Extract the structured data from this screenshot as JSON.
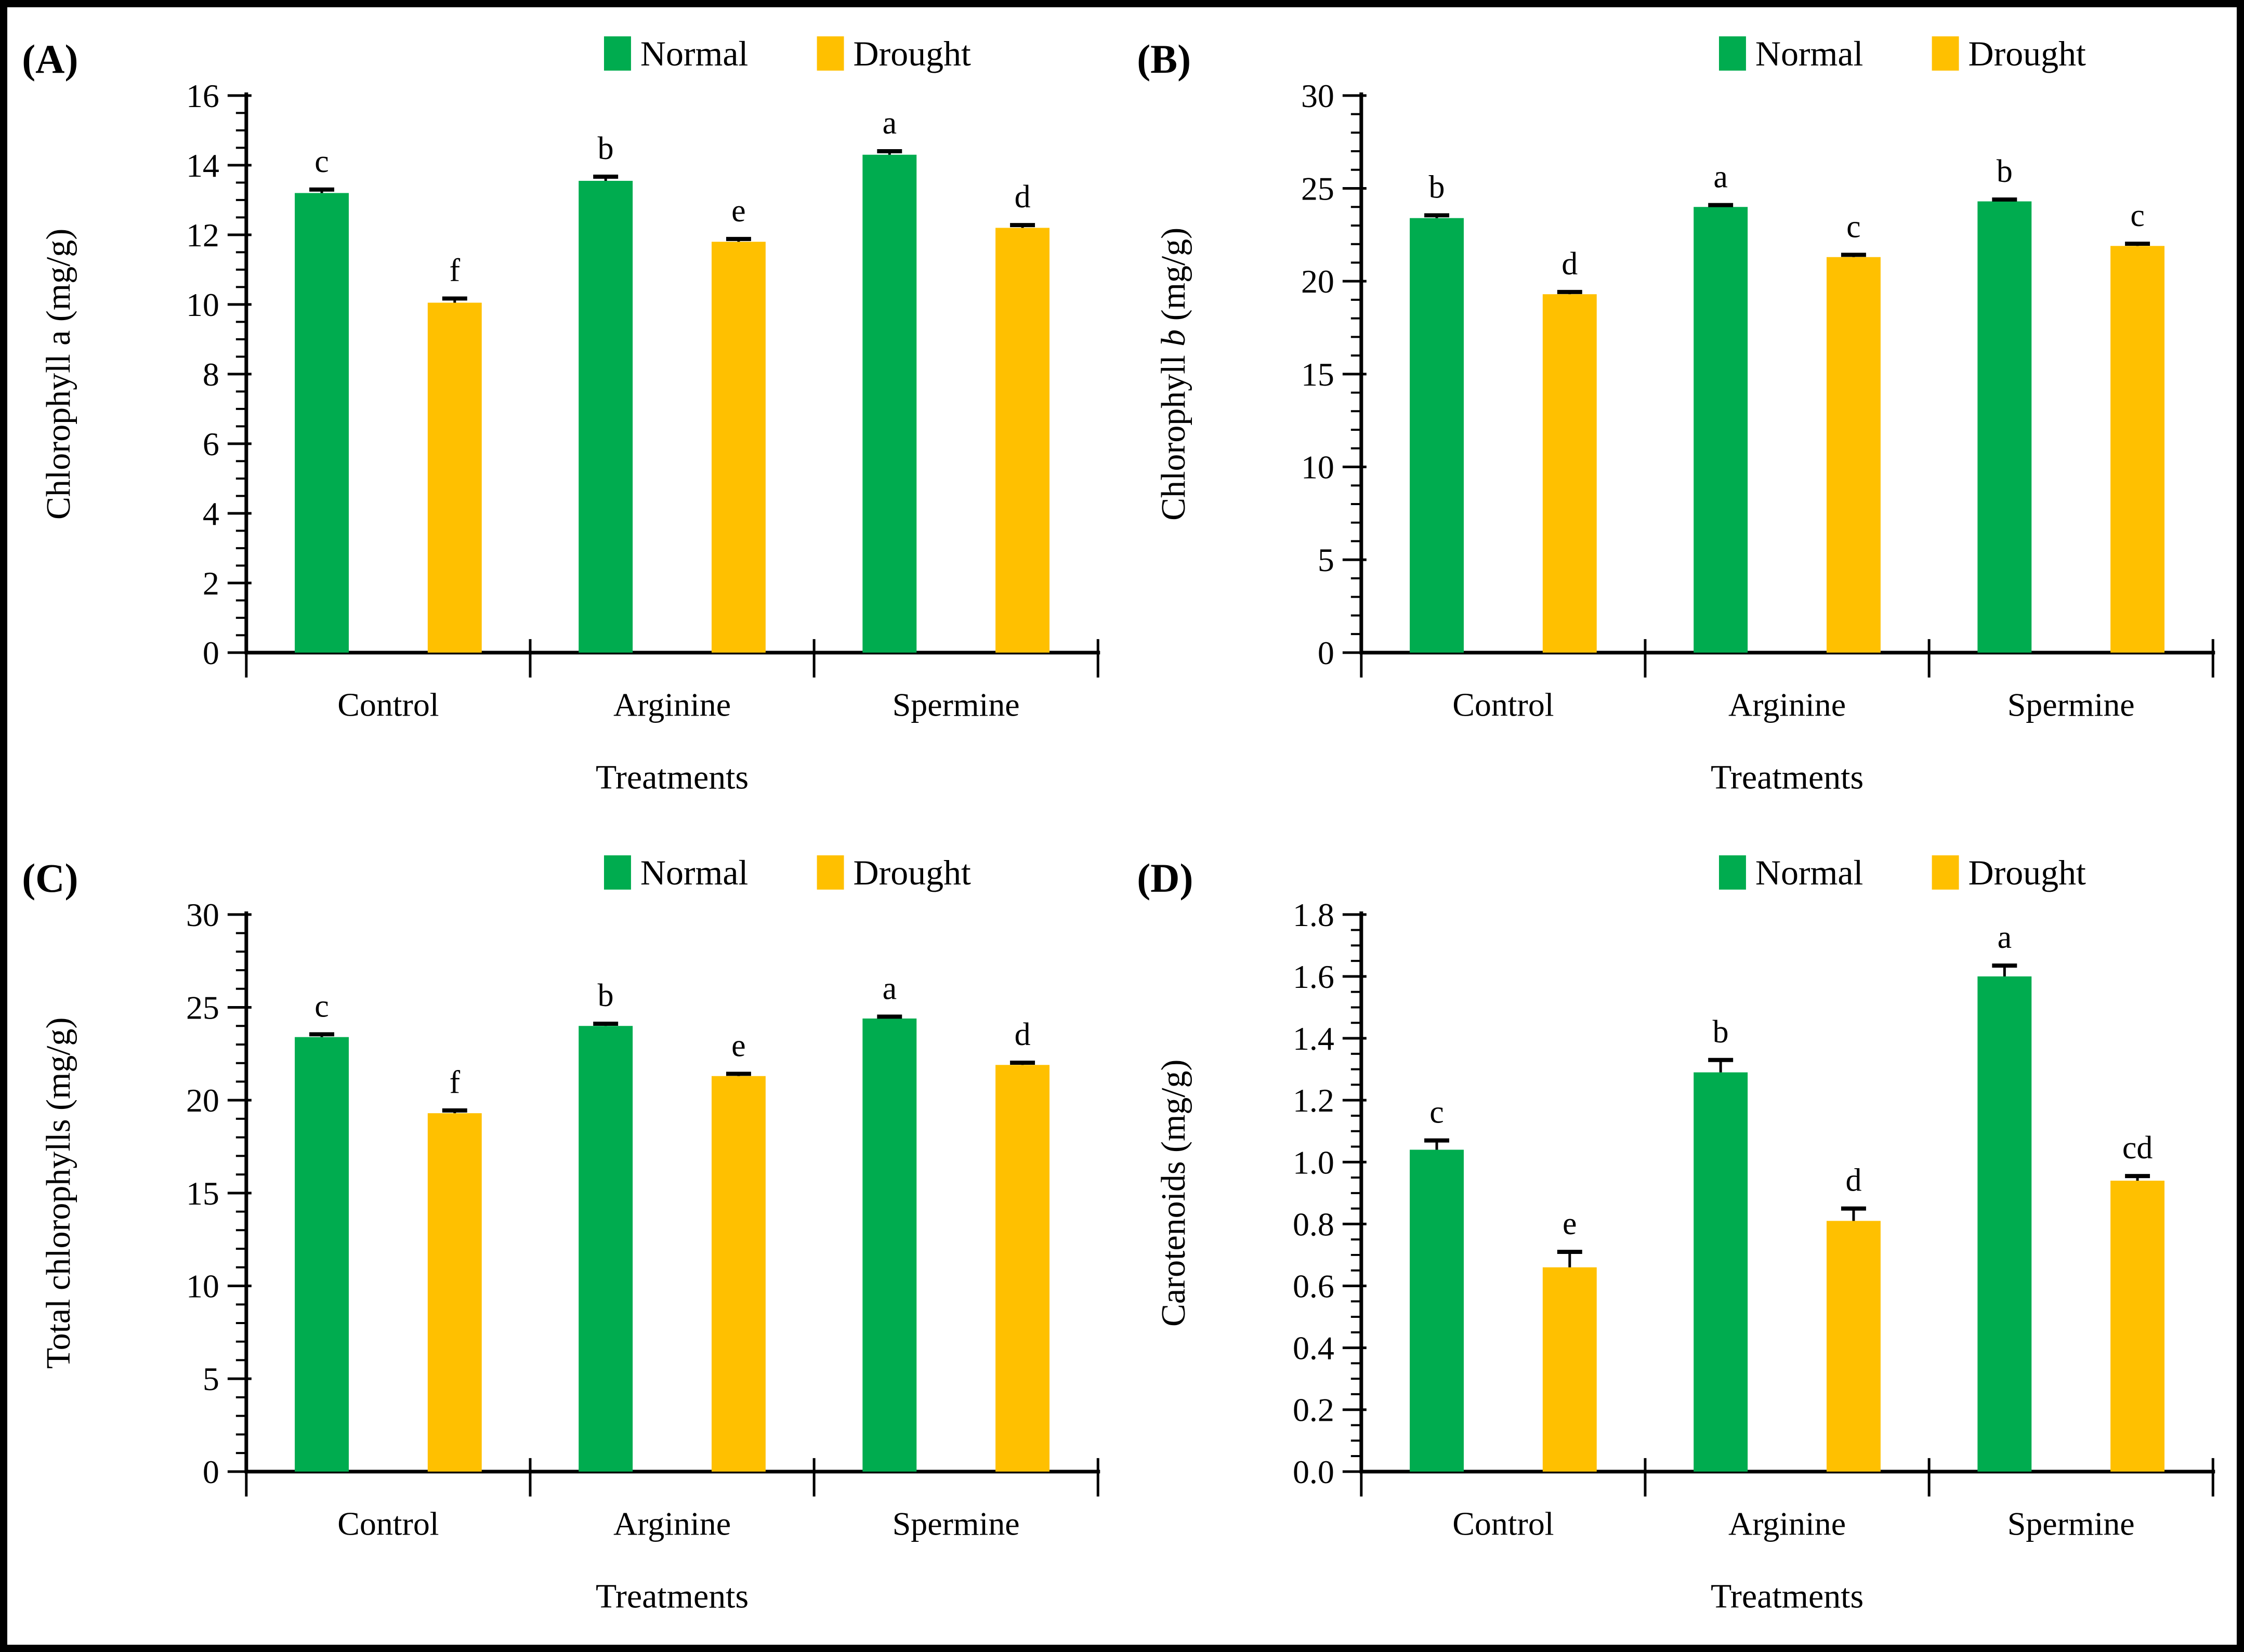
{
  "figure": {
    "background": "#ffffff",
    "border_color": "#000000"
  },
  "colors": {
    "normal": "#00AC4F",
    "drought": "#FFC000",
    "axis": "#000000",
    "text": "#000000"
  },
  "legend": {
    "items": [
      {
        "label": "Normal",
        "color_key": "normal"
      },
      {
        "label": "Drought",
        "color_key": "drought"
      }
    ]
  },
  "chart_data": [
    {
      "type": "bar",
      "panel_label": "(A)",
      "ylabel_parts": [
        {
          "text": "Chlorophyll a (mg/g)",
          "italic": false
        }
      ],
      "xlabel": "Treatments",
      "categories": [
        "Control",
        "Arginine",
        "Spermine"
      ],
      "ylim": [
        0,
        16
      ],
      "ytick_major": 2,
      "ytick_minor": 0.5,
      "ytick_decimals": 0,
      "legend_labels": [
        "Normal",
        "Drought"
      ],
      "series": [
        {
          "name": "Normal",
          "color_key": "normal",
          "values": [
            13.2,
            13.55,
            14.3
          ],
          "errors": [
            0.1,
            0.12,
            0.1
          ],
          "letters": [
            "c",
            "b",
            "a"
          ]
        },
        {
          "name": "Drought",
          "color_key": "drought",
          "values": [
            10.05,
            11.8,
            12.2
          ],
          "errors": [
            0.12,
            0.08,
            0.08
          ],
          "letters": [
            "f",
            "e",
            "d"
          ]
        }
      ]
    },
    {
      "type": "bar",
      "panel_label": "(B)",
      "ylabel_parts": [
        {
          "text": "Chlorophyll ",
          "italic": false
        },
        {
          "text": "b",
          "italic": true
        },
        {
          "text": " (mg/g)",
          "italic": false
        }
      ],
      "xlabel": "Treatments",
      "categories": [
        "Control",
        "Arginine",
        "Spermine"
      ],
      "ylim": [
        0,
        30
      ],
      "ytick_major": 5,
      "ytick_minor": 1,
      "ytick_decimals": 0,
      "legend_labels": [
        "Normal",
        "Drought"
      ],
      "series": [
        {
          "name": "Normal",
          "color_key": "normal",
          "values": [
            23.4,
            24.0,
            24.3
          ],
          "errors": [
            0.15,
            0.1,
            0.1
          ],
          "letters": [
            "b",
            "a",
            "b"
          ]
        },
        {
          "name": "Drought",
          "color_key": "drought",
          "values": [
            19.3,
            21.3,
            21.9
          ],
          "errors": [
            0.12,
            0.12,
            0.12
          ],
          "letters": [
            "d",
            "c",
            "c"
          ]
        }
      ]
    },
    {
      "type": "bar",
      "panel_label": "(C)",
      "ylabel_parts": [
        {
          "text": "Total chlorophylls (mg/g)",
          "italic": false
        }
      ],
      "xlabel": "Treatments",
      "categories": [
        "Control",
        "Arginine",
        "Spermine"
      ],
      "ylim": [
        0,
        30
      ],
      "ytick_major": 5,
      "ytick_minor": 1,
      "ytick_decimals": 0,
      "legend_labels": [
        "Normal",
        "Drought"
      ],
      "series": [
        {
          "name": "Normal",
          "color_key": "normal",
          "values": [
            23.4,
            24.0,
            24.4
          ],
          "errors": [
            0.15,
            0.12,
            0.1
          ],
          "letters": [
            "c",
            "b",
            "a"
          ]
        },
        {
          "name": "Drought",
          "color_key": "drought",
          "values": [
            19.3,
            21.3,
            21.9
          ],
          "errors": [
            0.15,
            0.12,
            0.12
          ],
          "letters": [
            "f",
            "e",
            "d"
          ]
        }
      ]
    },
    {
      "type": "bar",
      "panel_label": "(D)",
      "ylabel_parts": [
        {
          "text": "Carotenoids (mg/g)",
          "italic": false
        }
      ],
      "xlabel": "Treatments",
      "categories": [
        "Control",
        "Arginine",
        "Spermine"
      ],
      "ylim": [
        0,
        1.8
      ],
      "ytick_major": 0.2,
      "ytick_minor": 0.05,
      "ytick_decimals": 1,
      "legend_labels": [
        "Normal",
        "Drought"
      ],
      "series": [
        {
          "name": "Normal",
          "color_key": "normal",
          "values": [
            1.04,
            1.29,
            1.6
          ],
          "errors": [
            0.03,
            0.04,
            0.035
          ],
          "letters": [
            "c",
            "b",
            "a"
          ]
        },
        {
          "name": "Drought",
          "color_key": "drought",
          "values": [
            0.66,
            0.81,
            0.94
          ],
          "errors": [
            0.05,
            0.04,
            0.015
          ],
          "letters": [
            "e",
            "d",
            "cd"
          ]
        }
      ]
    }
  ]
}
